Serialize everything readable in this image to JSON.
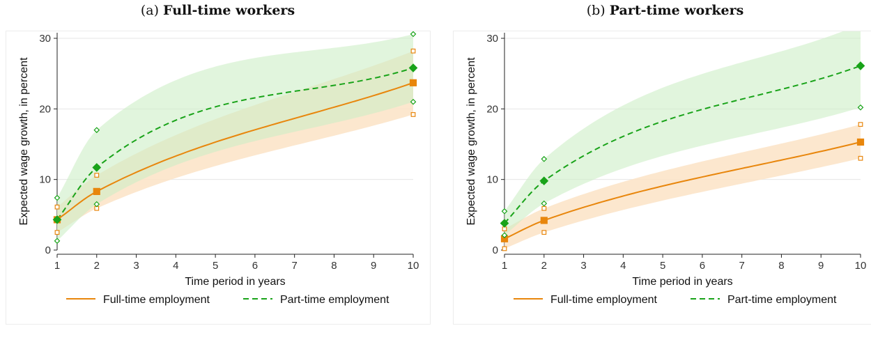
{
  "colors": {
    "full_time": "#e8860c",
    "part_time": "#19a319",
    "full_time_band": "#fbe3c6",
    "part_time_band": "#cdeec7",
    "grid": "#e6e6e6"
  },
  "chart_data": [
    {
      "type": "line",
      "panel_label": "(a)",
      "title": "Full-time workers",
      "xlabel": "Time period in years",
      "ylabel": "Expected wage growth, in percent",
      "xlim": [
        1,
        10
      ],
      "ylim": [
        0,
        30
      ],
      "xticks": [
        1,
        2,
        3,
        4,
        5,
        6,
        7,
        8,
        9,
        10
      ],
      "yticks": [
        0,
        10,
        20,
        30
      ],
      "grid": true,
      "legend_position": "bottom",
      "series": [
        {
          "name": "Full-time employment",
          "style": "solid",
          "marker": "square",
          "x": [
            1,
            2,
            10
          ],
          "values": [
            4.3,
            8.3,
            23.7
          ],
          "ci_lower": [
            2.5,
            5.9,
            19.2
          ],
          "ci_upper": [
            6.1,
            10.6,
            28.2
          ]
        },
        {
          "name": "Part-time employment",
          "style": "dashed",
          "marker": "diamond",
          "x": [
            1,
            2,
            10
          ],
          "values": [
            4.3,
            11.7,
            25.8
          ],
          "ci_lower": [
            1.3,
            6.5,
            21.0
          ],
          "ci_upper": [
            7.4,
            17.0,
            30.6
          ]
        }
      ]
    },
    {
      "type": "line",
      "panel_label": "(b)",
      "title": "Part-time workers",
      "xlabel": "Time period in years",
      "ylabel": "Expected wage growth, in percent",
      "xlim": [
        1,
        10
      ],
      "ylim": [
        0,
        30
      ],
      "xticks": [
        1,
        2,
        3,
        4,
        5,
        6,
        7,
        8,
        9,
        10
      ],
      "yticks": [
        0,
        10,
        20,
        30
      ],
      "grid": true,
      "legend_position": "bottom",
      "series": [
        {
          "name": "Full-time employment",
          "style": "solid",
          "marker": "square",
          "x": [
            1,
            2,
            10
          ],
          "values": [
            1.6,
            4.2,
            15.3
          ],
          "ci_lower": [
            0.2,
            2.5,
            13.0
          ],
          "ci_upper": [
            3.0,
            5.9,
            17.8
          ]
        },
        {
          "name": "Part-time employment",
          "style": "dashed",
          "marker": "diamond",
          "x": [
            1,
            2,
            10
          ],
          "values": [
            3.8,
            9.8,
            26.1
          ],
          "ci_lower": [
            2.1,
            6.6,
            20.2
          ],
          "ci_upper": [
            5.5,
            12.9,
            32.0
          ]
        }
      ]
    }
  ]
}
